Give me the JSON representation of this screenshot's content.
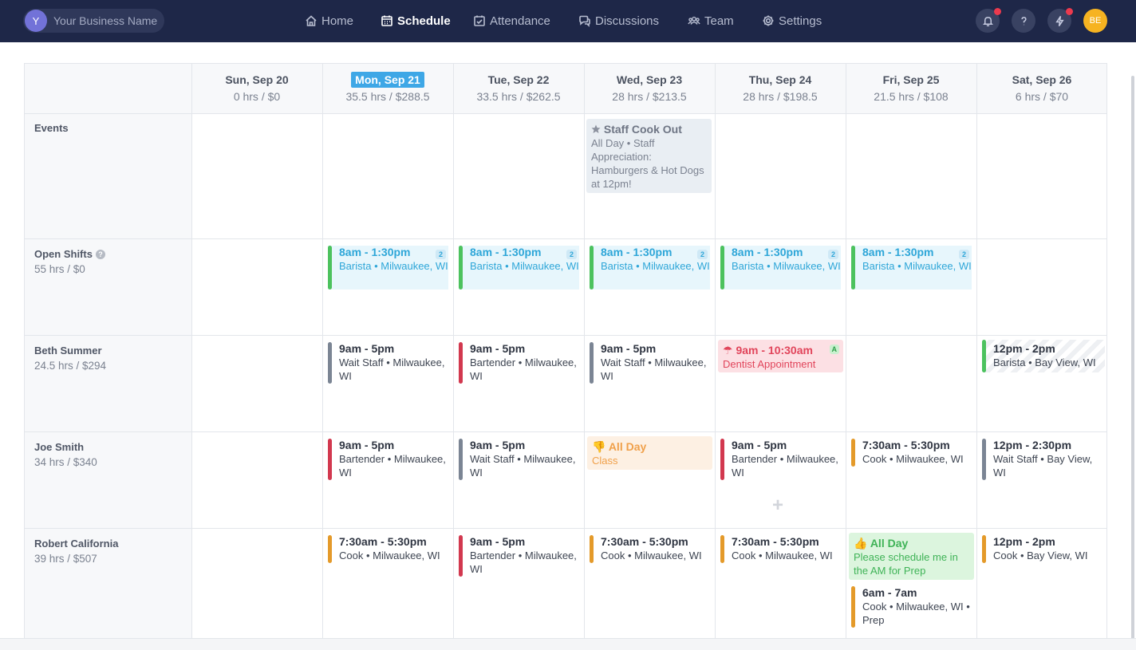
{
  "nav": {
    "business_initial": "Y",
    "business_name": "Your Business Name",
    "items": [
      {
        "label": "Home",
        "active": false
      },
      {
        "label": "Schedule",
        "active": true
      },
      {
        "label": "Attendance",
        "active": false
      },
      {
        "label": "Discussions",
        "active": false
      },
      {
        "label": "Team",
        "active": false
      },
      {
        "label": "Settings",
        "active": false
      }
    ],
    "user_initials": "BE"
  },
  "days": [
    {
      "name": "Sun, Sep 20",
      "summary": "0 hrs / $0"
    },
    {
      "name": "Mon, Sep 21",
      "summary": "35.5 hrs / $288.5",
      "today": true
    },
    {
      "name": "Tue, Sep 22",
      "summary": "33.5 hrs / $262.5"
    },
    {
      "name": "Wed, Sep 23",
      "summary": "28 hrs / $213.5"
    },
    {
      "name": "Thu, Sep 24",
      "summary": "28 hrs / $198.5"
    },
    {
      "name": "Fri, Sep 25",
      "summary": "21.5 hrs / $108"
    },
    {
      "name": "Sat, Sep 26",
      "summary": "6 hrs / $70"
    }
  ],
  "rows": {
    "events": {
      "name": "Events"
    },
    "open_shifts": {
      "name": "Open Shifts",
      "summary": "55 hrs / $0"
    },
    "beth": {
      "name": "Beth Summer",
      "summary": "24.5 hrs / $294"
    },
    "joe": {
      "name": "Joe Smith",
      "summary": "34 hrs / $340"
    },
    "robert": {
      "name": "Robert California",
      "summary": "39 hrs / $507"
    }
  },
  "event": {
    "title": "Staff Cook Out",
    "desc": "All Day • Staff Appreciation: Hamburgers & Hot Dogs at 12pm!"
  },
  "open_shift": {
    "time": "8am - 1:30pm",
    "desc": "Barista • Milwaukee, WI",
    "count": "2"
  },
  "beth": {
    "mon": {
      "time": "9am - 5pm",
      "desc": "Wait Staff • Milwaukee, WI"
    },
    "tue": {
      "time": "9am - 5pm",
      "desc": "Bartender • Milwaukee, WI"
    },
    "wed": {
      "time": "9am - 5pm",
      "desc": "Wait Staff • Milwaukee, WI"
    },
    "thu": {
      "time": "9am - 10:30am",
      "desc": "Dentist Appointment",
      "badge": "A"
    },
    "sat": {
      "time": "12pm - 2pm",
      "desc": "Barista • Bay View, WI"
    }
  },
  "joe": {
    "mon": {
      "time": "9am - 5pm",
      "desc": "Bartender • Milwaukee, WI"
    },
    "tue": {
      "time": "9am - 5pm",
      "desc": "Wait Staff • Milwaukee, WI"
    },
    "wed": {
      "time": "All Day",
      "desc": "Class"
    },
    "thu": {
      "time": "9am - 5pm",
      "desc": "Bartender • Milwaukee, WI"
    },
    "fri": {
      "time": "7:30am - 5:30pm",
      "desc": "Cook • Milwaukee, WI"
    },
    "sat": {
      "time": "12pm - 2:30pm",
      "desc": "Wait Staff • Bay View, WI"
    }
  },
  "robert": {
    "mon": {
      "time": "7:30am - 5:30pm",
      "desc": "Cook • Milwaukee, WI"
    },
    "tue": {
      "time": "9am - 5pm",
      "desc": "Bartender • Milwaukee, WI"
    },
    "wed": {
      "time": "7:30am - 5:30pm",
      "desc": "Cook • Milwaukee, WI"
    },
    "thu": {
      "time": "7:30am - 5:30pm",
      "desc": "Cook • Milwaukee, WI"
    },
    "fri_pref": {
      "time": "All Day",
      "desc": "Please schedule me in the AM for Prep"
    },
    "fri": {
      "time": "6am - 7am",
      "desc": "Cook • Milwaukee, WI • Prep"
    },
    "sat": {
      "time": "12pm - 2pm",
      "desc": "Cook • Bay View, WI"
    }
  },
  "colors": {
    "navbar": "#1e2748",
    "today": "#3ea7e6",
    "open_bar": "#4cc25e",
    "wait_staff_bar": "#7b8594",
    "bartender_bar": "#d2384f",
    "cook_bar": "#e49a2a",
    "barista_bar": "#4cc25e"
  }
}
